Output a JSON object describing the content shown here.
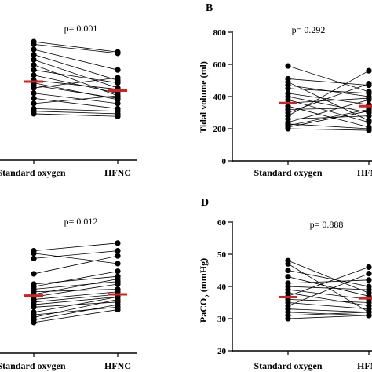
{
  "chart_data": [
    {
      "type": "scatter",
      "panel_label": "",
      "p_value": "p= 0.001",
      "categories": [
        "Standard oxygen",
        "HFNC"
      ],
      "ylabel": "",
      "ylim": [
        0,
        100
      ],
      "yticks": [],
      "mean_standard": 61,
      "mean_hfnc": 54,
      "pairs": [
        [
          92,
          84
        ],
        [
          90,
          83
        ],
        [
          86,
          70
        ],
        [
          82,
          62
        ],
        [
          78,
          56
        ],
        [
          74,
          50
        ],
        [
          70,
          60
        ],
        [
          66,
          52
        ],
        [
          62,
          55
        ],
        [
          58,
          48
        ],
        [
          56,
          64
        ],
        [
          52,
          44
        ],
        [
          48,
          40
        ],
        [
          44,
          50
        ],
        [
          40,
          38
        ],
        [
          38,
          36
        ],
        [
          36,
          34
        ],
        [
          60,
          47
        ]
      ]
    },
    {
      "type": "scatter",
      "panel_label": "B",
      "p_value": "p= 0.292",
      "categories": [
        "Standard oxygen",
        "HFNC"
      ],
      "ylabel": "Tidal volume (ml)",
      "ylim": [
        0,
        800
      ],
      "yticks": [
        0,
        200,
        400,
        600,
        800
      ],
      "mean_standard": 360,
      "mean_hfnc": 340,
      "pairs": [
        [
          590,
          430
        ],
        [
          510,
          470
        ],
        [
          490,
          250
        ],
        [
          470,
          400
        ],
        [
          450,
          420
        ],
        [
          420,
          350
        ],
        [
          400,
          300
        ],
        [
          380,
          240
        ],
        [
          360,
          390
        ],
        [
          340,
          210
        ],
        [
          320,
          330
        ],
        [
          300,
          480
        ],
        [
          280,
          560
        ],
        [
          260,
          280
        ],
        [
          240,
          380
        ],
        [
          230,
          200
        ],
        [
          220,
          320
        ],
        [
          210,
          310
        ],
        [
          200,
          190
        ]
      ]
    },
    {
      "type": "scatter",
      "panel_label": "",
      "p_value": "p= 0.012",
      "categories": [
        "Standard oxygen",
        "HFNC"
      ],
      "ylabel": "",
      "ylim": [
        0,
        100
      ],
      "yticks": [],
      "mean_standard": 45,
      "mean_hfnc": 46,
      "pairs": [
        [
          80,
          86
        ],
        [
          78,
          70
        ],
        [
          74,
          80
        ],
        [
          62,
          76
        ],
        [
          54,
          60
        ],
        [
          52,
          64
        ],
        [
          50,
          56
        ],
        [
          48,
          50
        ],
        [
          46,
          58
        ],
        [
          44,
          54
        ],
        [
          42,
          48
        ],
        [
          40,
          46
        ],
        [
          38,
          44
        ],
        [
          36,
          40
        ],
        [
          32,
          44
        ],
        [
          30,
          36
        ],
        [
          28,
          42
        ],
        [
          26,
          38
        ],
        [
          24,
          34
        ]
      ]
    },
    {
      "type": "scatter",
      "panel_label": "D",
      "p_value": "p= 0.888",
      "categories": [
        "Standard oxygen",
        "HFNC"
      ],
      "ylabel": "PaCO2 (mmHg)",
      "ylabel_main": "PaCO",
      "ylabel_sub": "2",
      "ylabel_tail": " (mmHg)",
      "ylim": [
        20,
        60
      ],
      "yticks": [
        20,
        30,
        40,
        50,
        60
      ],
      "mean_standard": 36.7,
      "mean_hfnc": 36.3,
      "pairs": [
        [
          48,
          38
        ],
        [
          47,
          32
        ],
        [
          45,
          40
        ],
        [
          43,
          37
        ],
        [
          41,
          42
        ],
        [
          40,
          39
        ],
        [
          39,
          36
        ],
        [
          38,
          34
        ],
        [
          37,
          46
        ],
        [
          36,
          35
        ],
        [
          35,
          33
        ],
        [
          34,
          44
        ],
        [
          33,
          32
        ],
        [
          32,
          31
        ],
        [
          31,
          32
        ],
        [
          30,
          31
        ]
      ]
    }
  ],
  "colors": {
    "points": "#000000",
    "mean": "#d42020",
    "axis": "#000000"
  }
}
